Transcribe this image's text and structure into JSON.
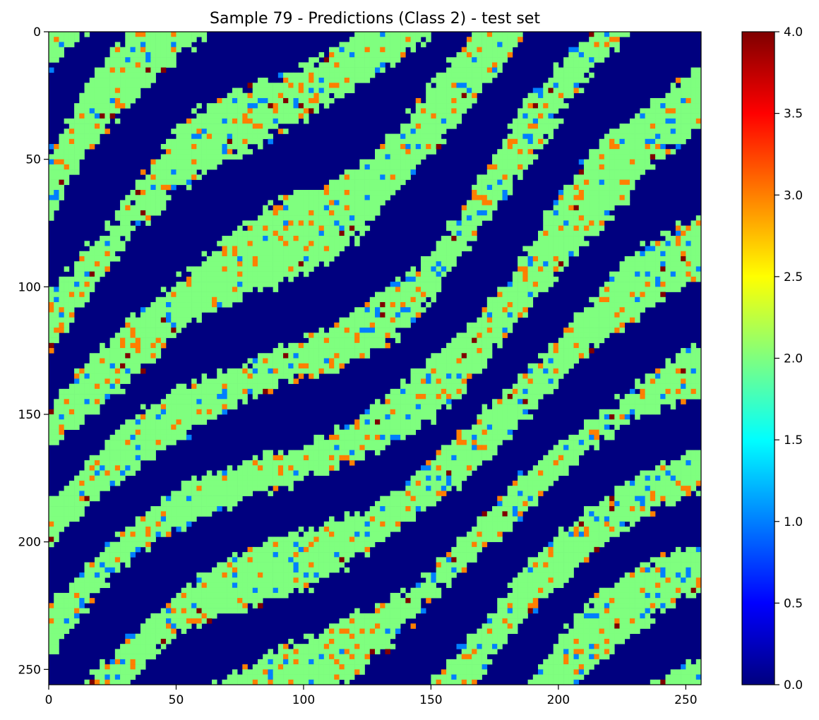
{
  "chart_data": {
    "type": "heatmap",
    "title": "Sample 79 - Predictions (Class 2) - test set",
    "xlabel": "",
    "ylabel": "",
    "xlim": [
      0,
      256
    ],
    "ylim": [
      256,
      0
    ],
    "x_ticks": [
      0,
      50,
      100,
      150,
      200,
      250
    ],
    "y_ticks": [
      0,
      50,
      100,
      150,
      200,
      250
    ],
    "grid": false,
    "colormap": "jet",
    "colorbar": {
      "min": 0.0,
      "max": 4.0,
      "ticks": [
        "0.0",
        "0.5",
        "1.0",
        "1.5",
        "2.0",
        "2.5",
        "3.0",
        "3.5",
        "4.0"
      ]
    },
    "colormap_stops": [
      "#00007f",
      "#0000ff",
      "#007fff",
      "#00ffff",
      "#7fff7f",
      "#ffff00",
      "#ff7f00",
      "#ff0000",
      "#7f0000"
    ],
    "value_frequencies": {
      "0": "dominant background (dark blue)",
      "2": "main predicted class (green), banded diagonal structures",
      "3": "scattered orange pixels along band edges",
      "1": "scattered light-blue pixels",
      "4": "rare dark-red pixels"
    }
  }
}
